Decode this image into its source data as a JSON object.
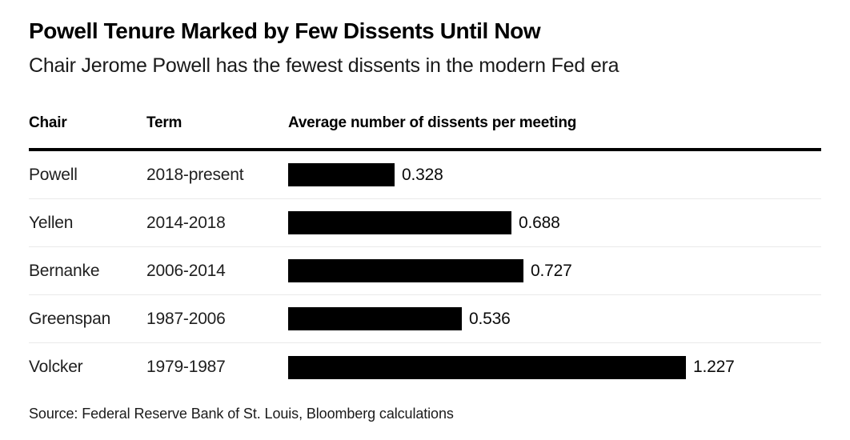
{
  "header": {
    "title": "Powell Tenure Marked by Few Dissents Until Now",
    "subtitle": "Chair Jerome Powell has the fewest dissents in the modern Fed era"
  },
  "table": {
    "columns": [
      "Chair",
      "Term",
      "Average number of dissents per meeting"
    ]
  },
  "chart_data": {
    "type": "bar",
    "orientation": "horizontal",
    "title": "Powell Tenure Marked by Few Dissents Until Now",
    "subtitle": "Chair Jerome Powell has the fewest dissents in the modern Fed era",
    "column_headers": [
      "Chair",
      "Term",
      "Average number of dissents per meeting"
    ],
    "categories": [
      "Powell",
      "Yellen",
      "Bernanke",
      "Greenspan",
      "Volcker"
    ],
    "terms": [
      "2018-present",
      "2014-2018",
      "2006-2014",
      "1987-2006",
      "1979-1987"
    ],
    "values": [
      0.328,
      0.688,
      0.727,
      0.536,
      1.227
    ],
    "value_labels": [
      "0.328",
      "0.688",
      "0.727",
      "0.536",
      "1.227"
    ],
    "xlim": [
      0,
      1.227
    ],
    "grid": false,
    "legend": false,
    "bar_color": "#000000"
  },
  "footer": {
    "source": "Source: Federal Reserve Bank of St. Louis, Bloomberg calculations"
  },
  "colors": {
    "bar": "#000000",
    "header_rule": "#000000",
    "row_separator": "#e9e9e9",
    "background": "#ffffff"
  }
}
